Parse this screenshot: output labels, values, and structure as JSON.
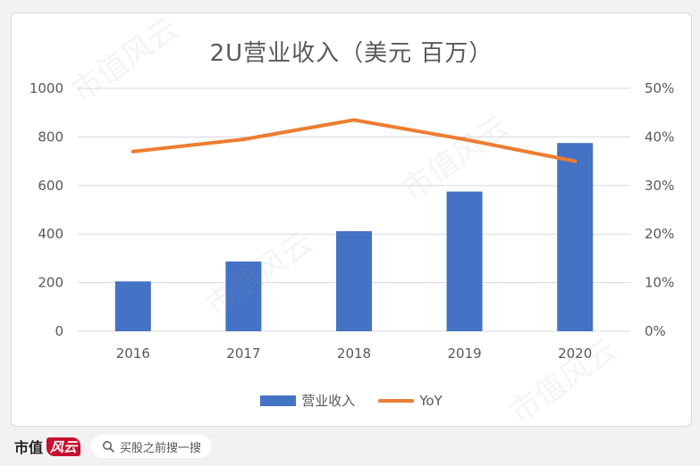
{
  "chart_data": {
    "type": "bar",
    "title": "2U营业收入（美元 百万）",
    "categories": [
      "2016",
      "2017",
      "2018",
      "2019",
      "2020"
    ],
    "series": [
      {
        "name": "营业收入",
        "type": "bar",
        "axis": "left",
        "color": "#4472C4",
        "values": [
          205,
          287,
          412,
          575,
          775
        ]
      },
      {
        "name": "YoY",
        "type": "line",
        "axis": "right",
        "color": "#ED7D31",
        "values": [
          37.0,
          39.5,
          43.5,
          39.5,
          35.0
        ]
      }
    ],
    "y_left": {
      "range": [
        0,
        1000
      ],
      "ticks": [
        "0",
        "200",
        "400",
        "600",
        "800",
        "1000"
      ]
    },
    "y_right": {
      "range": [
        0,
        50
      ],
      "ticks": [
        "0%",
        "10%",
        "20%",
        "30%",
        "40%",
        "50%"
      ]
    },
    "grid": true,
    "legend_position": "bottom"
  },
  "watermark": "市值风云",
  "footer": {
    "brand_text": "市值",
    "brand_mark": "风云",
    "search_placeholder": "买股之前搜一搜"
  }
}
